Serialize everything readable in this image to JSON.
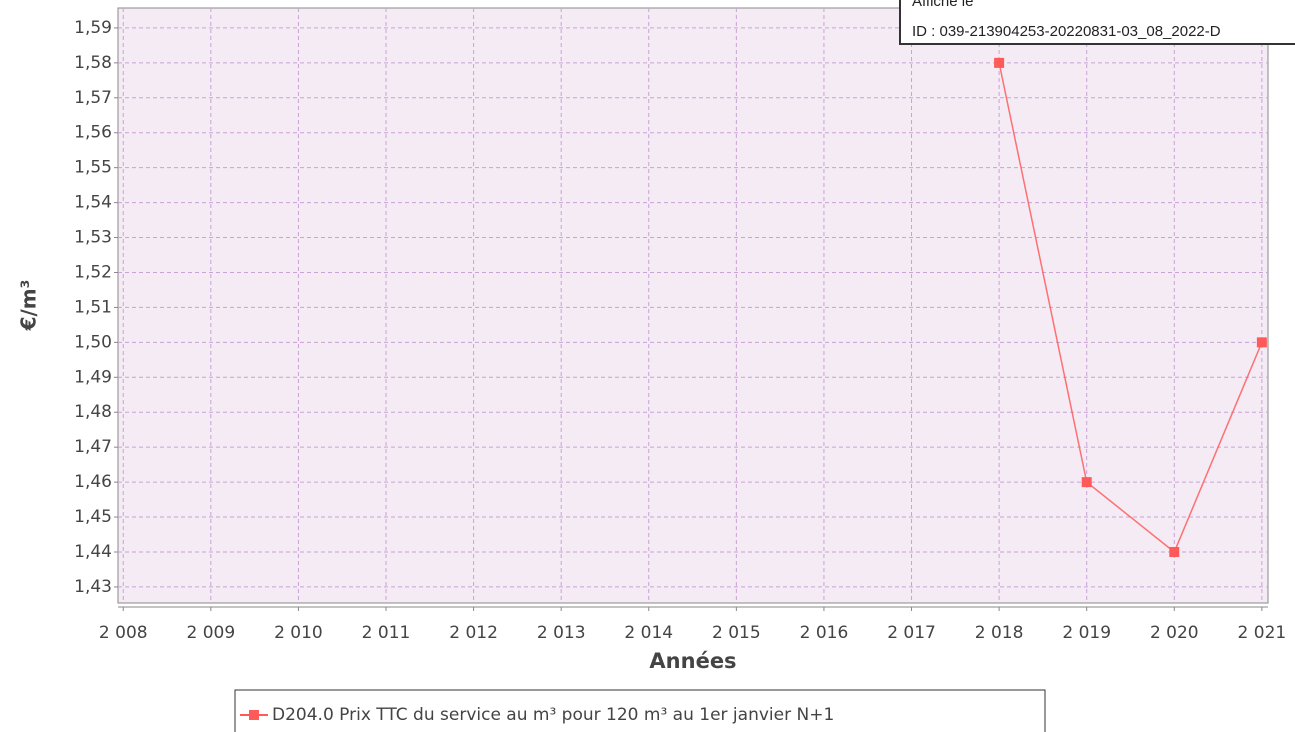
{
  "chart_data": {
    "type": "line",
    "xlabel": "Années",
    "ylabel": "€/m³",
    "x": [
      2018,
      2019,
      2020,
      2021
    ],
    "series": [
      {
        "name": "D204.0 Prix TTC du service au m³ pour 120 m³ au 1er janvier N+1",
        "color": "#ff5a5a",
        "values": [
          1.58,
          1.46,
          1.44,
          1.5
        ]
      }
    ],
    "xlim": [
      2007.94,
      2021.07
    ],
    "ylim": [
      1.4254,
      1.5957
    ],
    "xticks": [
      {
        "value": 2008,
        "label": "2 008"
      },
      {
        "value": 2009,
        "label": "2 009"
      },
      {
        "value": 2010,
        "label": "2 010"
      },
      {
        "value": 2011,
        "label": "2 011"
      },
      {
        "value": 2012,
        "label": "2 012"
      },
      {
        "value": 2013,
        "label": "2 013"
      },
      {
        "value": 2014,
        "label": "2 014"
      },
      {
        "value": 2015,
        "label": "2 015"
      },
      {
        "value": 2016,
        "label": "2 016"
      },
      {
        "value": 2017,
        "label": "2 017"
      },
      {
        "value": 2018,
        "label": "2 018"
      },
      {
        "value": 2019,
        "label": "2 019"
      },
      {
        "value": 2020,
        "label": "2 020"
      },
      {
        "value": 2021,
        "label": "2 021"
      }
    ],
    "yticks": [
      {
        "value": 1.43,
        "label": "1,43"
      },
      {
        "value": 1.44,
        "label": "1,44"
      },
      {
        "value": 1.45,
        "label": "1,45"
      },
      {
        "value": 1.46,
        "label": "1,46"
      },
      {
        "value": 1.47,
        "label": "1,47"
      },
      {
        "value": 1.48,
        "label": "1,48"
      },
      {
        "value": 1.49,
        "label": "1,49"
      },
      {
        "value": 1.5,
        "label": "1,50"
      },
      {
        "value": 1.51,
        "label": "1,51"
      },
      {
        "value": 1.52,
        "label": "1,52"
      },
      {
        "value": 1.53,
        "label": "1,53"
      },
      {
        "value": 1.54,
        "label": "1,54"
      },
      {
        "value": 1.55,
        "label": "1,55"
      },
      {
        "value": 1.56,
        "label": "1,56"
      },
      {
        "value": 1.57,
        "label": "1,57"
      },
      {
        "value": 1.58,
        "label": "1,58"
      },
      {
        "value": 1.59,
        "label": "1,59"
      }
    ],
    "grid": true
  },
  "stamp": {
    "lines": [
      "Affiché le",
      "ID : 039-213904253-20220831-03_08_2022-D"
    ]
  }
}
